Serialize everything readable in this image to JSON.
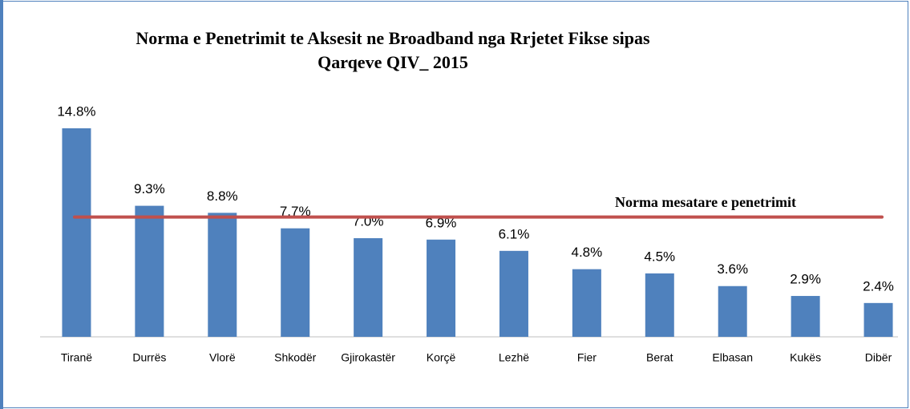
{
  "chart_data": {
    "type": "bar",
    "title": [
      "Norma e Penetrimit  te Aksesit ne Broadband nga Rrjetet Fikse sipas",
      "Qarqeve QIV_ 2015"
    ],
    "categories": [
      "Tiranë",
      "Durrës",
      "Vlorë",
      "Shkodër",
      "Gjirokastër",
      "Korçë",
      "Lezhë",
      "Fier",
      "Berat",
      "Elbasan",
      "Kukës",
      "Dibër"
    ],
    "values": [
      14.8,
      9.3,
      8.8,
      7.7,
      7.0,
      6.9,
      6.1,
      4.8,
      4.5,
      3.6,
      2.9,
      2.4
    ],
    "value_labels": [
      "14.8%",
      "9.3%",
      "8.8%",
      "7.7%",
      "7.0%",
      "6.9%",
      "6.1%",
      "4.8%",
      "4.5%",
      "3.6%",
      "2.9%",
      "2.4%"
    ],
    "color": "#4f81bd",
    "average_line": {
      "label": "Norma  mesatare e penetrimit",
      "value": 8.5,
      "color": "#c0504d"
    }
  }
}
